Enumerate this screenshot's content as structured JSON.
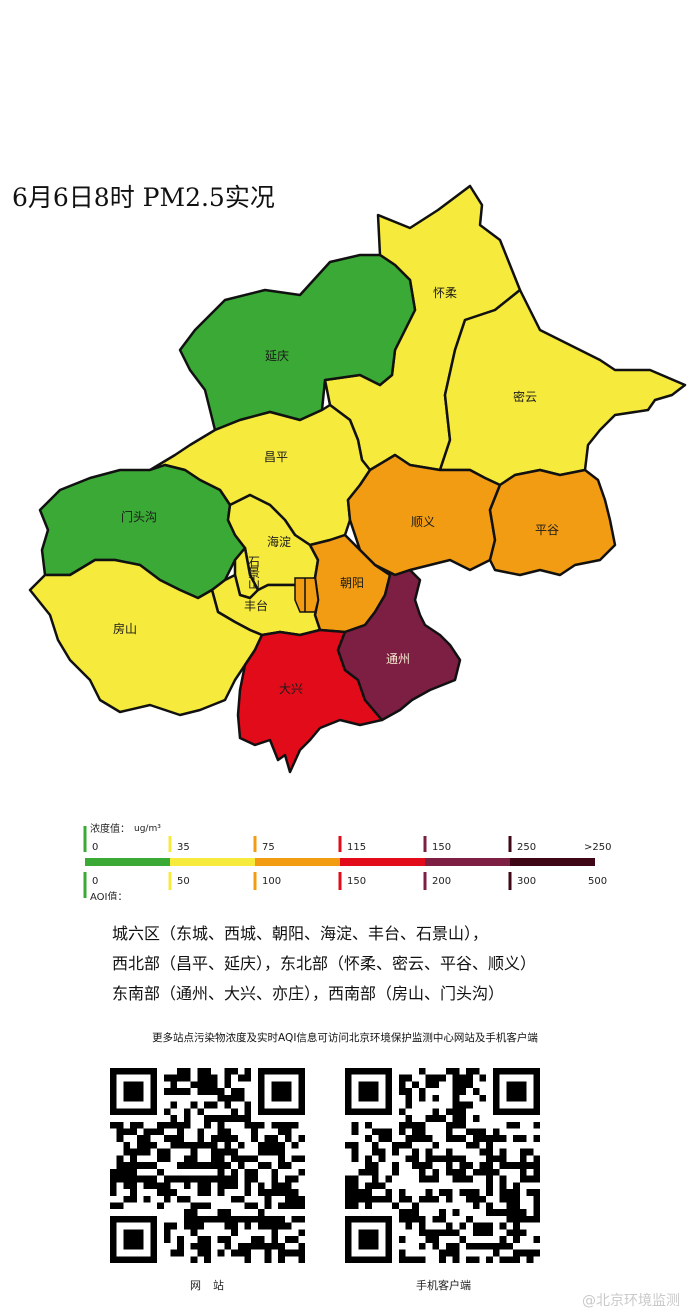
{
  "title": "6月6日8时 PM2.5实况",
  "colors": {
    "good": "#3aa935",
    "moderate": "#f6eb3c",
    "light": "#f19c13",
    "medium": "#e20b1a",
    "heavy": "#7d1e43",
    "severe": "#3f0616",
    "border": "#111111"
  },
  "districts": {
    "huairou": {
      "name": "怀柔",
      "level": "moderate"
    },
    "miyun": {
      "name": "密云",
      "level": "moderate"
    },
    "yanqing": {
      "name": "延庆",
      "level": "good"
    },
    "changping": {
      "name": "昌平",
      "level": "moderate"
    },
    "shunyi": {
      "name": "顺义",
      "level": "light"
    },
    "pinggu": {
      "name": "平谷",
      "level": "light"
    },
    "mentougou": {
      "name": "门头沟",
      "level": "good"
    },
    "haidian": {
      "name": "海淀",
      "level": "moderate"
    },
    "shijingshan": {
      "name": "石景山",
      "level": "moderate"
    },
    "chaoyang": {
      "name": "朝阳",
      "level": "light"
    },
    "fengtai": {
      "name": "丰台",
      "level": "moderate"
    },
    "fangshan": {
      "name": "房山",
      "level": "moderate"
    },
    "daxing": {
      "name": "大兴",
      "level": "medium"
    },
    "tongzhou": {
      "name": "通州",
      "level": "heavy"
    }
  },
  "legend": {
    "concentration_label": "浓度值：",
    "unit": "ug/m³",
    "aqi_label": "AQI值：",
    "concentration_ticks": [
      "0",
      "35",
      "75",
      "115",
      "150",
      "250",
      ">250"
    ],
    "aqi_ticks": [
      "0",
      "50",
      "100",
      "150",
      "200",
      "300",
      "500"
    ]
  },
  "regions": [
    "城六区（东城、西城、朝阳、海淀、丰台、石景山），",
    "西北部（昌平、延庆），东北部（怀柔、密云、平谷、顺义）",
    "东南部（通州、大兴、亦庄），西南部（房山、门头沟）"
  ],
  "note": "更多站点污染物浓度及实时AQI信息可访问北京环境保护监测中心网站及手机客户端",
  "qr_captions": {
    "website": "网站",
    "mobile": "手机客户端"
  },
  "watermark": "@北京环境监测"
}
